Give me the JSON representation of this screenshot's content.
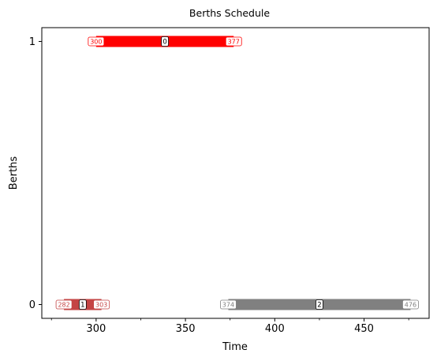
{
  "chart_data": {
    "type": "gantt",
    "title": "Berths Schedule",
    "xlabel": "Time",
    "ylabel": "Berths",
    "xlim": [
      269.6,
      486.4
    ],
    "ylim": [
      -0.0525,
      1.0525
    ],
    "x_ticks": [
      300,
      350,
      400,
      450
    ],
    "x_minor_ticks": [
      275,
      325,
      375,
      425,
      475
    ],
    "y_ticks": [
      0,
      1
    ],
    "grid": false,
    "tasks": [
      {
        "id": "0",
        "berth": 1,
        "start": 300,
        "end": 377,
        "start_label": "300",
        "end_label": "377",
        "color": "#ff0000"
      },
      {
        "id": "1",
        "berth": 0,
        "start": 282,
        "end": 303,
        "start_label": "282",
        "end_label": "303",
        "color": "#c44444"
      },
      {
        "id": "2",
        "berth": 0,
        "start": 374,
        "end": 476,
        "start_label": "374",
        "end_label": "476",
        "color": "#808080"
      }
    ]
  }
}
